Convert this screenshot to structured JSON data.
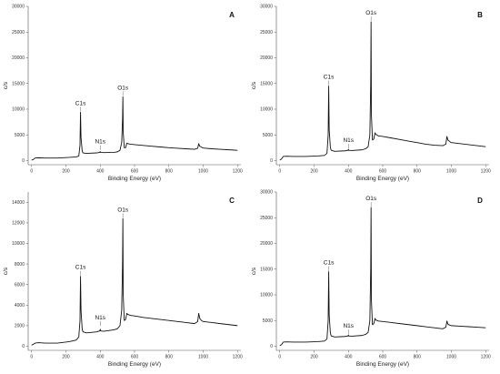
{
  "colors": {
    "line": "#111111",
    "axis": "#555555",
    "background": "#ffffff"
  },
  "chart_data": [
    {
      "type": "line",
      "panel_label": "A",
      "xlabel": "Binding Energy (eV)",
      "ylabel": "c/s",
      "xlim": [
        -20,
        1220
      ],
      "ylim": [
        -800,
        30000
      ],
      "x_ticks": [
        0,
        200,
        400,
        600,
        800,
        1000,
        1200
      ],
      "x_tick_labels": [
        "0",
        "200",
        "400",
        "600",
        "800",
        "1000",
        "1200"
      ],
      "y_ticks": [
        0,
        5000,
        10000,
        15000,
        20000,
        25000,
        30000
      ],
      "y_tick_labels": [
        "0",
        "5000",
        "10000",
        "15000",
        "20000",
        "25000",
        "30000"
      ],
      "grid": false,
      "legend": "none",
      "peaks": [
        {
          "label": "C1s",
          "x": 285,
          "y": 9400
        },
        {
          "label": "N1s",
          "x": 400,
          "y": 1900
        },
        {
          "label": "O1s",
          "x": 532,
          "y": 12400
        }
      ],
      "series": [
        {
          "x": [
            0,
            10,
            20,
            40,
            80,
            150,
            220,
            260,
            275,
            282,
            285,
            288,
            295,
            300,
            320,
            380,
            398,
            400,
            402,
            420,
            480,
            500,
            515,
            525,
            530,
            532,
            534,
            540,
            548,
            555,
            560,
            575,
            600,
            650,
            700,
            750,
            800,
            850,
            900,
            950,
            968,
            974,
            980,
            990,
            1000,
            1050,
            1100,
            1150,
            1200
          ],
          "values": [
            100,
            200,
            500,
            550,
            500,
            500,
            620,
            720,
            900,
            3000,
            9400,
            4500,
            1800,
            1500,
            1400,
            1500,
            1600,
            1750,
            1600,
            1550,
            1600,
            1700,
            2000,
            3500,
            8000,
            12400,
            5500,
            2500,
            2500,
            3400,
            3300,
            3200,
            3100,
            2950,
            2800,
            2650,
            2500,
            2400,
            2300,
            2200,
            2400,
            3300,
            2800,
            2600,
            2450,
            2300,
            2200,
            2100,
            2000
          ]
        }
      ]
    },
    {
      "type": "line",
      "panel_label": "B",
      "xlabel": "Binding Energy (eV)",
      "ylabel": "c/s",
      "xlim": [
        -20,
        1220
      ],
      "ylim": [
        -800,
        30000
      ],
      "x_ticks": [
        0,
        200,
        400,
        600,
        800,
        1000,
        1200
      ],
      "x_tick_labels": [
        "0",
        "200",
        "400",
        "600",
        "800",
        "1000",
        "1200"
      ],
      "y_ticks": [
        0,
        5000,
        10000,
        15000,
        20000,
        25000,
        30000
      ],
      "y_tick_labels": [
        "0",
        "5000",
        "10000",
        "15000",
        "20000",
        "25000",
        "30000"
      ],
      "grid": false,
      "legend": "none",
      "peaks": [
        {
          "label": "C1s",
          "x": 285,
          "y": 14500
        },
        {
          "label": "N1s",
          "x": 400,
          "y": 2200
        },
        {
          "label": "O1s",
          "x": 532,
          "y": 27000
        }
      ],
      "series": [
        {
          "x": [
            0,
            10,
            20,
            40,
            80,
            150,
            220,
            260,
            275,
            282,
            285,
            288,
            295,
            300,
            320,
            380,
            398,
            400,
            402,
            420,
            480,
            500,
            515,
            525,
            530,
            532,
            534,
            540,
            548,
            555,
            560,
            575,
            600,
            650,
            700,
            750,
            800,
            850,
            900,
            950,
            968,
            974,
            980,
            990,
            1000,
            1050,
            1100,
            1150,
            1200
          ],
          "values": [
            100,
            300,
            800,
            850,
            800,
            800,
            900,
            1000,
            1400,
            5000,
            14500,
            6000,
            2500,
            2000,
            1800,
            1900,
            2000,
            2200,
            2000,
            1950,
            2100,
            2300,
            2700,
            5000,
            15000,
            27000,
            9000,
            4000,
            4200,
            5400,
            5100,
            4800,
            4700,
            4400,
            4100,
            3800,
            3500,
            3200,
            3000,
            2900,
            3200,
            4700,
            4000,
            3700,
            3500,
            3300,
            3100,
            2900,
            2700
          ]
        }
      ]
    },
    {
      "type": "line",
      "panel_label": "C",
      "xlabel": "Binding Energy (eV)",
      "ylabel": "c/s",
      "xlim": [
        -20,
        1220
      ],
      "ylim": [
        -400,
        15000
      ],
      "x_ticks": [
        0,
        200,
        400,
        600,
        800,
        1000,
        1200
      ],
      "x_tick_labels": [
        "0",
        "200",
        "400",
        "600",
        "800",
        "1000",
        "1200"
      ],
      "y_ticks": [
        0,
        2000,
        4000,
        6000,
        8000,
        10000,
        12000,
        14000
      ],
      "y_tick_labels": [
        "0",
        "2000",
        "4000",
        "6000",
        "8000",
        "10000",
        "12000",
        "14000"
      ],
      "grid": false,
      "legend": "none",
      "peaks": [
        {
          "label": "C1s",
          "x": 285,
          "y": 6800
        },
        {
          "label": "N1s",
          "x": 400,
          "y": 1900
        },
        {
          "label": "O1s",
          "x": 532,
          "y": 12400
        }
      ],
      "series": [
        {
          "x": [
            0,
            10,
            20,
            40,
            80,
            150,
            220,
            260,
            275,
            282,
            285,
            288,
            295,
            300,
            320,
            380,
            398,
            400,
            402,
            420,
            480,
            500,
            515,
            525,
            530,
            532,
            534,
            540,
            548,
            555,
            560,
            575,
            600,
            650,
            700,
            750,
            800,
            850,
            900,
            950,
            968,
            974,
            980,
            990,
            1000,
            1050,
            1100,
            1150,
            1200
          ],
          "values": [
            100,
            200,
            300,
            350,
            300,
            300,
            450,
            600,
            900,
            2500,
            6800,
            3500,
            1600,
            1400,
            1300,
            1400,
            1500,
            1650,
            1500,
            1450,
            1600,
            1700,
            2000,
            3500,
            8000,
            12400,
            5000,
            2500,
            2600,
            3200,
            3100,
            3000,
            2950,
            2800,
            2700,
            2600,
            2500,
            2400,
            2300,
            2200,
            2400,
            3200,
            2700,
            2500,
            2400,
            2300,
            2200,
            2100,
            2000
          ]
        }
      ]
    },
    {
      "type": "line",
      "panel_label": "D",
      "xlabel": "Binding Energy (eV)",
      "ylabel": "c/s",
      "xlim": [
        -20,
        1220
      ],
      "ylim": [
        -800,
        30000
      ],
      "x_ticks": [
        0,
        200,
        400,
        600,
        800,
        1000,
        1200
      ],
      "x_tick_labels": [
        "0",
        "200",
        "400",
        "600",
        "800",
        "1000",
        "1200"
      ],
      "y_ticks": [
        0,
        5000,
        10000,
        15000,
        20000,
        25000,
        30000
      ],
      "y_tick_labels": [
        "0",
        "5000",
        "10000",
        "15000",
        "20000",
        "25000",
        "30000"
      ],
      "grid": false,
      "legend": "none",
      "peaks": [
        {
          "label": "C1s",
          "x": 285,
          "y": 14500
        },
        {
          "label": "N1s",
          "x": 400,
          "y": 2200
        },
        {
          "label": "O1s",
          "x": 532,
          "y": 27000
        }
      ],
      "series": [
        {
          "x": [
            0,
            10,
            20,
            40,
            80,
            150,
            220,
            260,
            275,
            282,
            285,
            288,
            295,
            300,
            320,
            380,
            398,
            400,
            402,
            420,
            480,
            500,
            515,
            525,
            530,
            532,
            534,
            540,
            548,
            555,
            560,
            575,
            600,
            650,
            700,
            750,
            800,
            850,
            900,
            950,
            968,
            974,
            980,
            990,
            1000,
            1050,
            1100,
            1150,
            1200
          ],
          "values": [
            100,
            300,
            800,
            850,
            800,
            800,
            900,
            1000,
            1400,
            5000,
            14500,
            6000,
            2500,
            2000,
            1800,
            1900,
            2000,
            2200,
            2000,
            1950,
            2100,
            2300,
            2700,
            5000,
            15000,
            27000,
            9000,
            4200,
            4400,
            5400,
            5100,
            4900,
            4800,
            4600,
            4400,
            4200,
            4000,
            3800,
            3600,
            3400,
            3700,
            4900,
            4300,
            4100,
            4000,
            3900,
            3800,
            3700,
            3600
          ]
        }
      ]
    }
  ]
}
